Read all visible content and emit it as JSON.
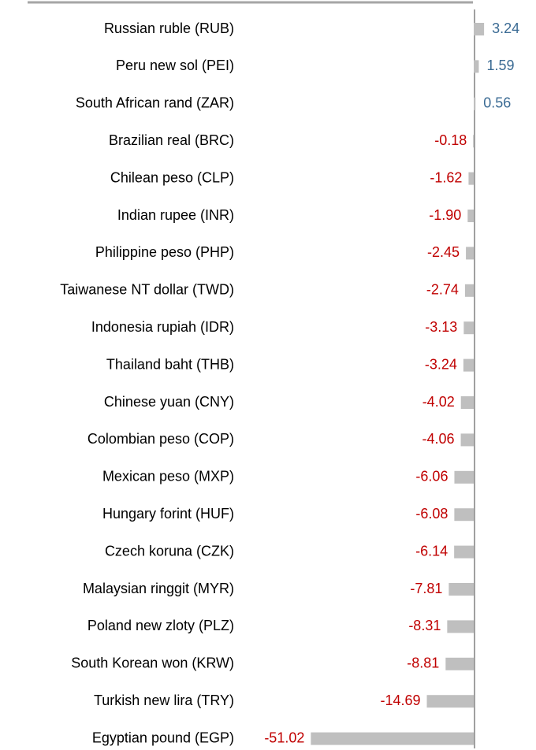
{
  "chart_data": {
    "type": "bar",
    "orientation": "horizontal",
    "categories": [
      "Russian ruble (RUB)",
      "Peru new sol (PEI)",
      "South African rand (ZAR)",
      "Brazilian real (BRC)",
      "Chilean peso (CLP)",
      "Indian rupee (INR)",
      "Philippine peso (PHP)",
      "Taiwanese NT dollar (TWD)",
      "Indonesia rupiah (IDR)",
      "Thailand baht (THB)",
      "Chinese yuan (CNY)",
      "Colombian peso (COP)",
      "Mexican peso (MXP)",
      "Hungary forint (HUF)",
      "Czech koruna (CZK)",
      "Malaysian ringgit (MYR)",
      "Poland new zloty (PLZ)",
      "South Korean won (KRW)",
      "Turkish new lira (TRY)",
      "Egyptian pound (EGP)"
    ],
    "values": [
      3.24,
      1.59,
      0.56,
      -0.18,
      -1.62,
      -1.9,
      -2.45,
      -2.74,
      -3.13,
      -3.24,
      -4.02,
      -4.06,
      -6.06,
      -6.08,
      -6.14,
      -7.81,
      -8.31,
      -8.81,
      -14.69,
      -51.02
    ],
    "value_labels": [
      "3.24",
      "1.59",
      "0.56",
      "-0.18",
      "-1.62",
      "-1.90",
      "-2.45",
      "-2.74",
      "-3.13",
      "-3.24",
      "-4.02",
      "-4.06",
      "-6.06",
      "-6.08",
      "-6.14",
      "-7.81",
      "-8.31",
      "-8.81",
      "-14.69",
      "-51.02"
    ],
    "color": "#bfbfbf",
    "positive_label_color": "#3b6b94",
    "negative_label_color": "#c00000"
  }
}
